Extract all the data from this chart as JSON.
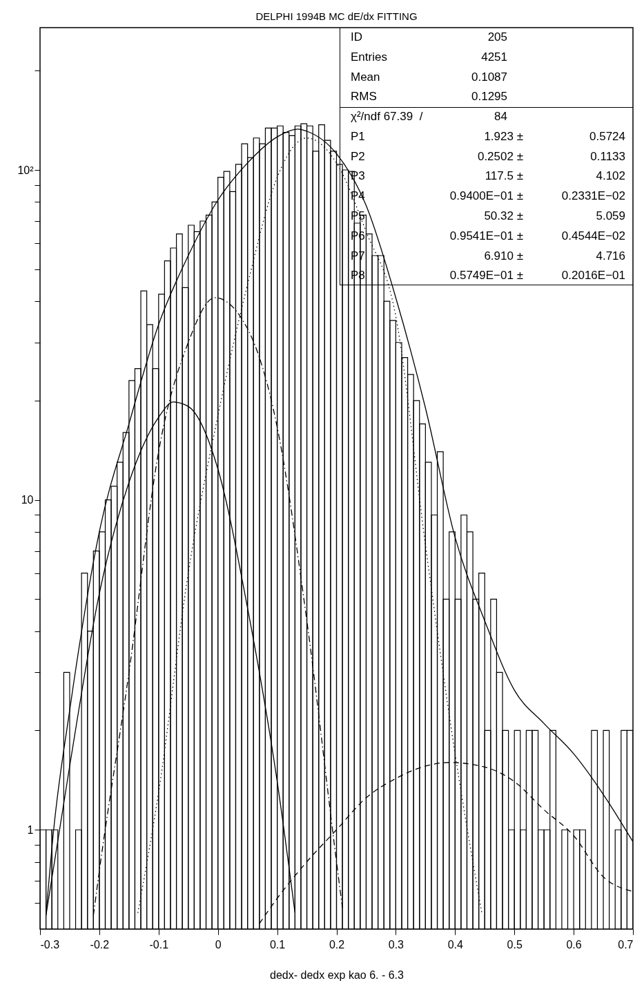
{
  "chart_data": {
    "type": "histogram",
    "title": "DELPHI 1994B MC dE/dx FITTING",
    "xlabel": "dedx- dedx exp kao 6. - 6.3",
    "color": "#000000",
    "bins": [
      -0.3,
      -0.29,
      -0.28,
      -0.27,
      -0.26,
      -0.25,
      -0.24,
      -0.23,
      -0.22,
      -0.21,
      -0.2,
      -0.19,
      -0.18,
      -0.17,
      -0.16,
      -0.15,
      -0.14,
      -0.13,
      -0.12,
      -0.11,
      -0.1,
      -0.09,
      -0.08,
      -0.07,
      -0.06,
      -0.05,
      -0.04,
      -0.03,
      -0.02,
      -0.01,
      0,
      0.01,
      0.02,
      0.03,
      0.04,
      0.05,
      0.06,
      0.07,
      0.08,
      0.09,
      0.1,
      0.11,
      0.12,
      0.13,
      0.14,
      0.15,
      0.16,
      0.17,
      0.18,
      0.19,
      0.2,
      0.21,
      0.22,
      0.23,
      0.24,
      0.25,
      0.26,
      0.27,
      0.28,
      0.29,
      0.3,
      0.31,
      0.32,
      0.33,
      0.34,
      0.35,
      0.36,
      0.37,
      0.38,
      0.39,
      0.4,
      0.41,
      0.42,
      0.43,
      0.44,
      0.45,
      0.46,
      0.47,
      0.48,
      0.49,
      0.5,
      0.51,
      0.52,
      0.53,
      0.54,
      0.55,
      0.56,
      0.57,
      0.58,
      0.59,
      0.6,
      0.61,
      0.62,
      0.63,
      0.64,
      0.65,
      0.66,
      0.67,
      0.68,
      0.69,
      0.7
    ],
    "values": [
      1,
      1,
      1,
      null,
      3,
      null,
      1,
      6,
      4,
      7,
      8,
      10,
      11,
      13,
      16,
      23,
      25,
      43,
      34,
      25,
      42,
      53,
      58,
      64,
      44,
      68,
      65,
      70,
      73,
      80,
      95,
      99,
      86,
      104,
      120,
      109,
      125,
      120,
      134,
      134,
      136,
      130,
      127,
      136,
      138,
      136,
      114,
      137,
      123,
      114,
      104,
      100,
      99,
      69,
      73,
      64,
      55,
      55,
      40,
      35,
      30,
      27,
      24,
      20,
      17,
      13,
      9,
      14,
      5,
      8,
      5,
      9,
      8,
      5,
      6,
      2,
      5,
      3,
      2,
      1,
      2,
      1,
      2,
      2,
      1,
      1,
      2,
      null,
      1,
      null,
      1,
      1,
      null,
      2,
      null,
      2,
      null,
      1,
      2,
      2
    ],
    "series": [
      {
        "type": "line",
        "color": "#000000",
        "line_style": "solid",
        "x": [
          -0.29,
          -0.277,
          -0.25,
          -0.2,
          -0.15,
          -0.1,
          -0.05,
          0,
          0.05,
          0.1,
          0.135,
          0.15,
          0.2,
          0.25,
          0.3,
          0.35,
          0.4,
          0.45,
          0.5,
          0.55,
          0.6,
          0.65,
          0.7
        ],
        "values": [
          0.55,
          1,
          2.3,
          8,
          17,
          34,
          55,
          81,
          105,
          126,
          133,
          131,
          112,
          78,
          41,
          19,
          7.7,
          4.3,
          2.65,
          2.1,
          1.7,
          1.28,
          0.92
        ]
      },
      {
        "type": "line",
        "color": "#000000",
        "line_style": "solid",
        "x": [
          -0.29,
          -0.25,
          -0.2,
          -0.15,
          -0.1,
          -0.075,
          -0.05,
          0,
          0.05,
          0.1,
          0.13
        ],
        "values": [
          0.55,
          1.56,
          5.2,
          11.3,
          17.8,
          19.8,
          19.2,
          12.4,
          4.7,
          1.4,
          0.56
        ]
      },
      {
        "type": "line",
        "color": "#000000",
        "line_style": "dashdot",
        "x": [
          -0.21,
          -0.2,
          -0.15,
          -0.1,
          -0.05,
          -0.005,
          0.05,
          0.1,
          0.15,
          0.2,
          0.21
        ],
        "values": [
          0.55,
          0.75,
          3,
          14,
          30,
          41,
          33,
          16.6,
          4.3,
          0.8,
          0.58
        ]
      },
      {
        "type": "line",
        "color": "#000000",
        "line_style": "dotted",
        "x": [
          -0.135,
          -0.1,
          -0.05,
          0,
          0.05,
          0.1,
          0.15,
          0.2,
          0.25,
          0.3,
          0.35,
          0.4,
          0.445
        ],
        "values": [
          0.56,
          1.3,
          6,
          18,
          45,
          95,
          125,
          105,
          65,
          36,
          7.3,
          1.7,
          0.56
        ]
      },
      {
        "type": "line",
        "color": "#000000",
        "line_style": "dashed",
        "x": [
          0.07,
          0.1,
          0.15,
          0.2,
          0.25,
          0.3,
          0.35,
          0.39,
          0.45,
          0.5,
          0.55,
          0.6,
          0.65,
          0.7
        ],
        "values": [
          0.52,
          0.62,
          0.8,
          1,
          1.25,
          1.43,
          1.56,
          1.6,
          1.55,
          1.4,
          1.15,
          0.96,
          0.72,
          0.65
        ]
      }
    ],
    "xlim": [
      -0.3,
      0.7
    ],
    "xticks": [
      -0.3,
      -0.2,
      -0.1,
      0,
      0.1,
      0.2,
      0.3,
      0.4,
      0.5,
      0.6,
      0.7
    ],
    "ylim": [
      0.5,
      270
    ],
    "log": true,
    "yticks": [
      {
        "value": 0.6,
        "label": null
      },
      {
        "value": 0.7,
        "label": null
      },
      {
        "value": 0.8,
        "label": null
      },
      {
        "value": 0.9,
        "label": null
      },
      1,
      {
        "value": 2,
        "label": null
      },
      {
        "value": 3,
        "label": null
      },
      {
        "value": 4,
        "label": null
      },
      {
        "value": 5,
        "label": null
      },
      {
        "value": 6,
        "label": null
      },
      {
        "value": 7,
        "label": null
      },
      {
        "value": 8,
        "label": null
      },
      {
        "value": 9,
        "label": null
      },
      10,
      {
        "value": 20,
        "label": null
      },
      {
        "value": 30,
        "label": null
      },
      {
        "value": 40,
        "label": null
      },
      {
        "value": 50,
        "label": null
      },
      {
        "value": 60,
        "label": null
      },
      {
        "value": 70,
        "label": null
      },
      {
        "value": 80,
        "label": null
      },
      {
        "value": 90,
        "label": null
      },
      {
        "value": 100,
        "label": "10²"
      },
      {
        "value": 200,
        "label": null
      }
    ],
    "annotations": [
      "ID\t205",
      "Entries\t4251",
      "Mean\t0.1087",
      "RMS\t0.1295",
      "χ²/ndf 67.39  /\t84",
      "P1\t1.923 ±\t0.5724",
      "P2\t0.2502 ±\t0.1133",
      "P3\t117.5 ±\t4.102",
      "P4\t0.9400E−01 ±\t0.2331E−02",
      "P5\t50.32 ±\t5.059",
      "P6\t0.9541E−01 ±\t0.4544E−02",
      "P7\t6.910 ±\t4.716",
      "P8\t0.5749E−01 ±\t0.2016E−01"
    ]
  }
}
